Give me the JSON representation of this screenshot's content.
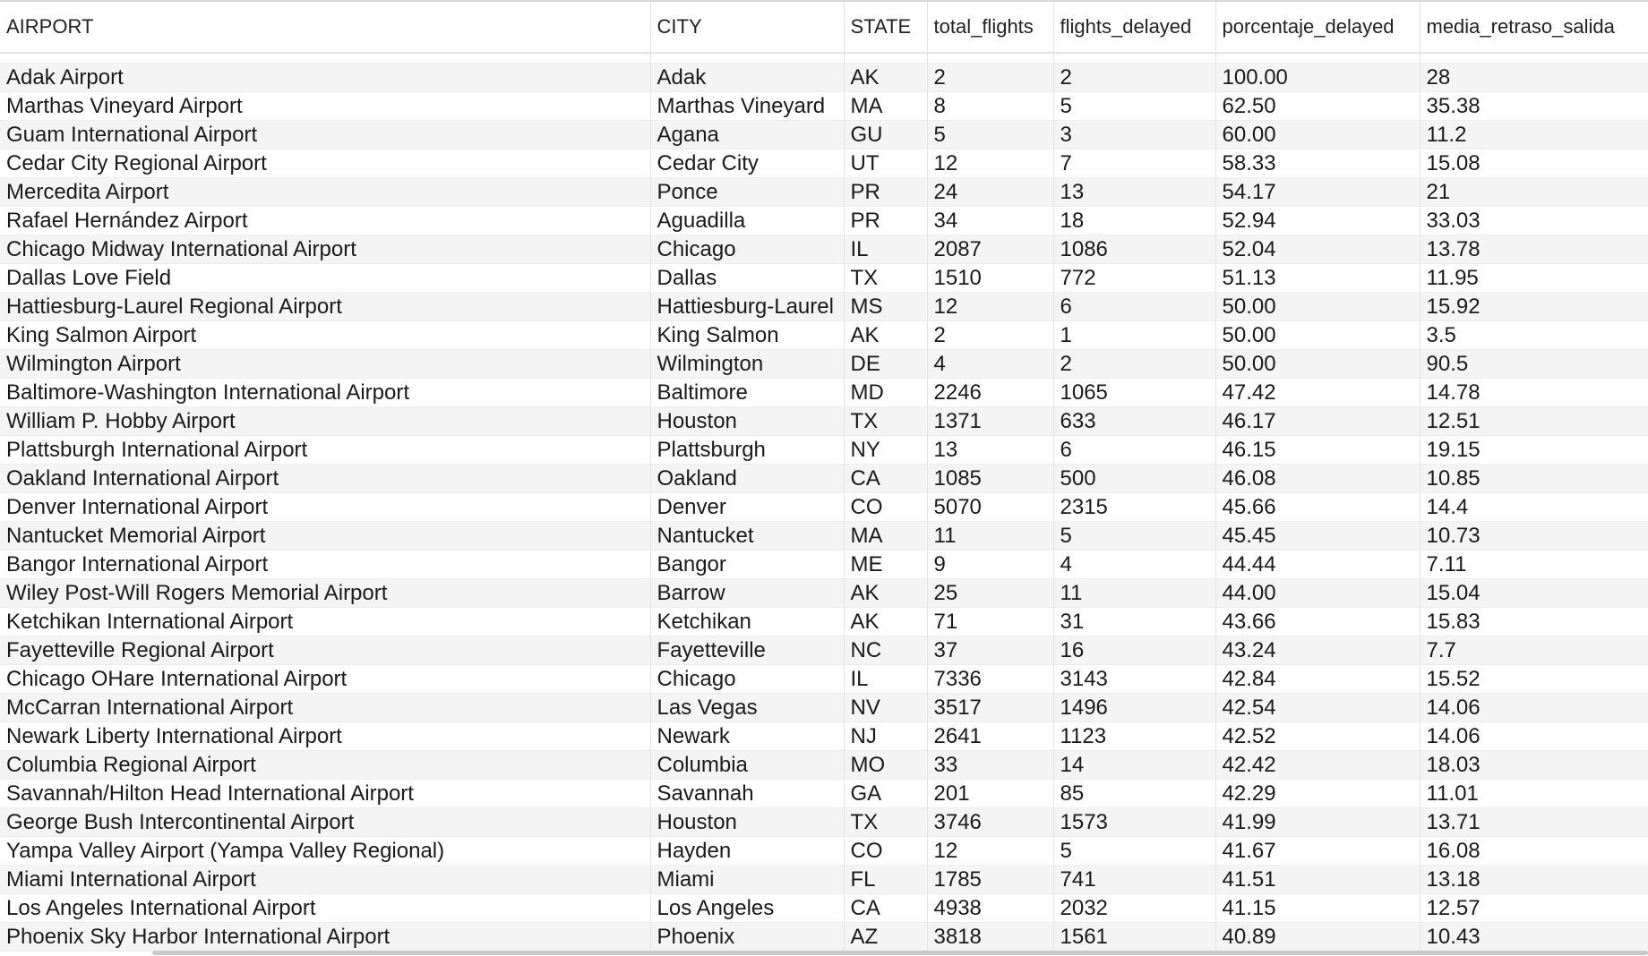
{
  "table": {
    "columns": [
      "AIRPORT",
      "CITY",
      "STATE",
      "total_flights",
      "flights_delayed",
      "porcentaje_delayed",
      "media_retraso_salida"
    ],
    "rows": [
      [
        "Adak Airport",
        "Adak",
        "AK",
        "2",
        "2",
        "100.00",
        "28"
      ],
      [
        "Marthas Vineyard Airport",
        "Marthas Vineyard",
        "MA",
        "8",
        "5",
        "62.50",
        "35.38"
      ],
      [
        "Guam International Airport",
        "Agana",
        "GU",
        "5",
        "3",
        "60.00",
        "11.2"
      ],
      [
        "Cedar City Regional Airport",
        "Cedar City",
        "UT",
        "12",
        "7",
        "58.33",
        "15.08"
      ],
      [
        "Mercedita Airport",
        "Ponce",
        "PR",
        "24",
        "13",
        "54.17",
        "21"
      ],
      [
        "Rafael Hernández Airport",
        "Aguadilla",
        "PR",
        "34",
        "18",
        "52.94",
        "33.03"
      ],
      [
        "Chicago Midway International Airport",
        "Chicago",
        "IL",
        "2087",
        "1086",
        "52.04",
        "13.78"
      ],
      [
        "Dallas Love Field",
        "Dallas",
        "TX",
        "1510",
        "772",
        "51.13",
        "11.95"
      ],
      [
        "Hattiesburg-Laurel Regional Airport",
        "Hattiesburg-Laurel",
        "MS",
        "12",
        "6",
        "50.00",
        "15.92"
      ],
      [
        "King Salmon Airport",
        "King Salmon",
        "AK",
        "2",
        "1",
        "50.00",
        "3.5"
      ],
      [
        "Wilmington Airport",
        "Wilmington",
        "DE",
        "4",
        "2",
        "50.00",
        "90.5"
      ],
      [
        "Baltimore-Washington International Airport",
        "Baltimore",
        "MD",
        "2246",
        "1065",
        "47.42",
        "14.78"
      ],
      [
        "William P. Hobby Airport",
        "Houston",
        "TX",
        "1371",
        "633",
        "46.17",
        "12.51"
      ],
      [
        "Plattsburgh International Airport",
        "Plattsburgh",
        "NY",
        "13",
        "6",
        "46.15",
        "19.15"
      ],
      [
        "Oakland International Airport",
        "Oakland",
        "CA",
        "1085",
        "500",
        "46.08",
        "10.85"
      ],
      [
        "Denver International Airport",
        "Denver",
        "CO",
        "5070",
        "2315",
        "45.66",
        "14.4"
      ],
      [
        "Nantucket Memorial Airport",
        "Nantucket",
        "MA",
        "11",
        "5",
        "45.45",
        "10.73"
      ],
      [
        "Bangor International Airport",
        "Bangor",
        "ME",
        "9",
        "4",
        "44.44",
        "7.11"
      ],
      [
        "Wiley Post-Will Rogers Memorial Airport",
        "Barrow",
        "AK",
        "25",
        "11",
        "44.00",
        "15.04"
      ],
      [
        "Ketchikan International Airport",
        "Ketchikan",
        "AK",
        "71",
        "31",
        "43.66",
        "15.83"
      ],
      [
        "Fayetteville Regional Airport",
        "Fayetteville",
        "NC",
        "37",
        "16",
        "43.24",
        "7.7"
      ],
      [
        "Chicago OHare International Airport",
        "Chicago",
        "IL",
        "7336",
        "3143",
        "42.84",
        "15.52"
      ],
      [
        "McCarran International Airport",
        "Las Vegas",
        "NV",
        "3517",
        "1496",
        "42.54",
        "14.06"
      ],
      [
        "Newark Liberty International Airport",
        "Newark",
        "NJ",
        "2641",
        "1123",
        "42.52",
        "14.06"
      ],
      [
        "Columbia Regional Airport",
        "Columbia",
        "MO",
        "33",
        "14",
        "42.42",
        "18.03"
      ],
      [
        "Savannah/Hilton Head International Airport",
        "Savannah",
        "GA",
        "201",
        "85",
        "42.29",
        "11.01"
      ],
      [
        "George Bush Intercontinental Airport",
        "Houston",
        "TX",
        "3746",
        "1573",
        "41.99",
        "13.71"
      ],
      [
        "Yampa Valley Airport (Yampa Valley Regional)",
        "Hayden",
        "CO",
        "12",
        "5",
        "41.67",
        "16.08"
      ],
      [
        "Miami International Airport",
        "Miami",
        "FL",
        "1785",
        "741",
        "41.51",
        "13.18"
      ],
      [
        "Los Angeles International Airport",
        "Los Angeles",
        "CA",
        "4938",
        "2032",
        "41.15",
        "12.57"
      ],
      [
        "Phoenix Sky Harbor International Airport",
        "Phoenix",
        "AZ",
        "3818",
        "1561",
        "40.89",
        "10.43"
      ]
    ]
  }
}
